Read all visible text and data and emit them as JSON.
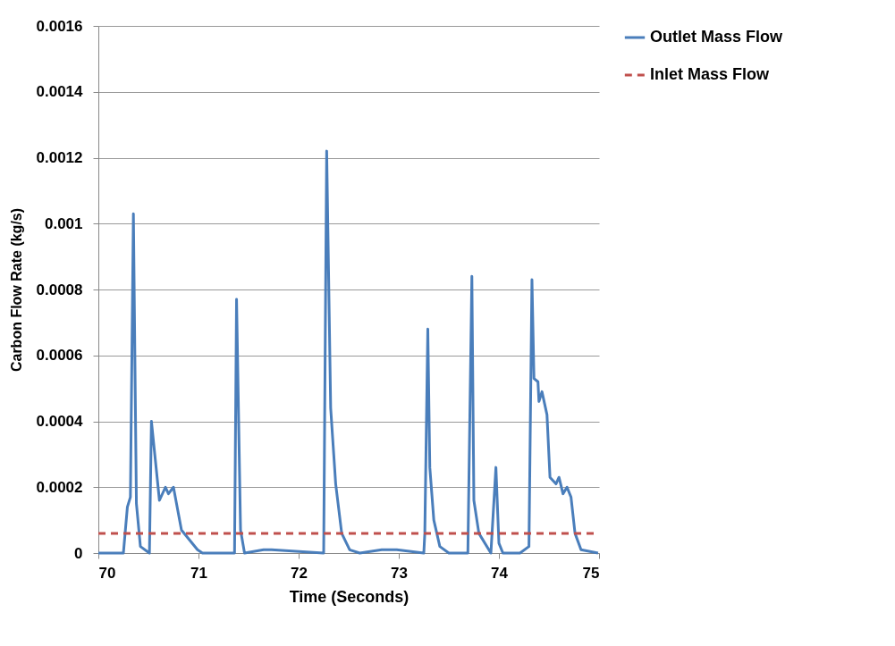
{
  "chart_data": {
    "type": "line",
    "xlabel": "Time (Seconds)",
    "ylabel": "Carbon Flow Rate (kg/s)",
    "xlim": [
      70,
      75
    ],
    "xticks": [
      70,
      71,
      72,
      73,
      74,
      75
    ],
    "ylim": [
      0,
      0.0016
    ],
    "yticks": [
      0,
      0.0002,
      0.0004,
      0.0006,
      0.0008,
      0.001,
      0.0012,
      0.0014,
      0.0016
    ],
    "grid": "y",
    "legend": "right",
    "marker": "none",
    "series": [
      {
        "name": "Outlet Mass Flow",
        "color": "#4a7ebb",
        "line_style": "solid",
        "x": [
          70,
          70.25,
          70.29,
          70.32,
          70.35,
          70.38,
          70.42,
          70.51,
          70.53,
          70.61,
          70.67,
          70.7,
          70.75,
          70.83,
          70.91,
          70.99,
          71.04,
          71.36,
          71.38,
          71.42,
          71.46,
          71.65,
          71.73,
          72.25,
          72.28,
          72.32,
          72.37,
          72.43,
          72.51,
          72.61,
          72.83,
          72.98,
          73.25,
          73.26,
          73.29,
          73.31,
          73.35,
          73.41,
          73.5,
          73.69,
          73.73,
          73.75,
          73.8,
          73.92,
          73.97,
          74,
          74.04,
          74.21,
          74.3,
          74.33,
          74.35,
          74.39,
          74.4,
          74.43,
          74.48,
          74.51,
          74.57,
          74.6,
          74.64,
          74.68,
          74.72,
          74.76,
          74.82,
          74.99
        ],
        "values": [
          0,
          0,
          0.00014,
          0.00017,
          0.00103,
          0.00015,
          2e-05,
          0,
          0.0004,
          0.00016,
          0.0002,
          0.00018,
          0.0002,
          7e-05,
          4e-05,
          1e-05,
          0,
          0,
          0.00077,
          7e-05,
          0,
          1e-05,
          1e-05,
          0,
          0.00122,
          0.00044,
          0.00021,
          6e-05,
          1e-05,
          0,
          1e-05,
          1e-05,
          0,
          6e-05,
          0.00068,
          0.00026,
          0.0001,
          2e-05,
          0,
          0,
          0.00084,
          0.00016,
          6e-05,
          0,
          0.00026,
          3e-05,
          0,
          0,
          2e-05,
          0.00083,
          0.00053,
          0.00052,
          0.00046,
          0.00049,
          0.00042,
          0.00023,
          0.00021,
          0.00023,
          0.00018,
          0.0002,
          0.00017,
          6e-05,
          1e-05,
          0
        ]
      },
      {
        "name": "Inlet Mass Flow",
        "color": "#c0504d",
        "line_style": "dashed",
        "x": [
          70,
          75
        ],
        "values": [
          6e-05,
          6e-05
        ]
      }
    ]
  }
}
